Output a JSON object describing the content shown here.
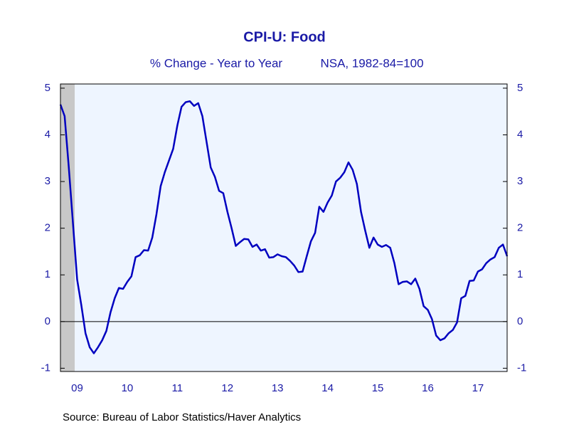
{
  "chart_data": {
    "type": "line",
    "title": "CPI-U: Food",
    "subtitle": [
      "% Change - Year to Year",
      "NSA, 1982-84=100"
    ],
    "source": "Source:  Bureau of Labor Statistics/Haver Analytics",
    "categories": [
      null,
      null,
      null,
      null,
      "09",
      null,
      null,
      null,
      null,
      null,
      null,
      null,
      null,
      null,
      null,
      null,
      "10",
      null,
      null,
      null,
      null,
      null,
      null,
      null,
      null,
      null,
      null,
      null,
      "11",
      null,
      null,
      null,
      null,
      null,
      null,
      null,
      null,
      null,
      null,
      null,
      "12",
      null,
      null,
      null,
      null,
      null,
      null,
      null,
      null,
      null,
      null,
      null,
      "13",
      null,
      null,
      null,
      null,
      null,
      null,
      null,
      null,
      null,
      null,
      null,
      "14",
      null,
      null,
      null,
      null,
      null,
      null,
      null,
      null,
      null,
      null,
      null,
      "15",
      null,
      null,
      null,
      null,
      null,
      null,
      null,
      null,
      null,
      null,
      null,
      "16",
      null,
      null,
      null,
      null,
      null,
      null,
      null,
      null,
      null,
      null,
      null,
      "17",
      null,
      null,
      null,
      null,
      null,
      null,
      null
    ],
    "series": [
      {
        "color": "#0000c0",
        "values": [
          4.65,
          4.4,
          3.3,
          2.1,
          0.9,
          0.35,
          -0.25,
          -0.55,
          -0.68,
          -0.55,
          -0.4,
          -0.2,
          0.2,
          0.5,
          0.72,
          0.7,
          0.85,
          0.97,
          1.38,
          1.42,
          1.53,
          1.52,
          1.8,
          2.3,
          2.9,
          3.2,
          3.45,
          3.7,
          4.2,
          4.6,
          4.7,
          4.72,
          4.62,
          4.68,
          4.4,
          3.85,
          3.3,
          3.1,
          2.8,
          2.75,
          2.35,
          2.0,
          1.62,
          1.7,
          1.77,
          1.76,
          1.6,
          1.65,
          1.52,
          1.55,
          1.37,
          1.38,
          1.44,
          1.4,
          1.38,
          1.3,
          1.2,
          1.06,
          1.07,
          1.4,
          1.72,
          1.9,
          2.46,
          2.35,
          2.55,
          2.7,
          3.0,
          3.08,
          3.2,
          3.41,
          3.25,
          2.95,
          2.35,
          1.95,
          1.58,
          1.8,
          1.65,
          1.6,
          1.64,
          1.58,
          1.25,
          0.8,
          0.85,
          0.86,
          0.8,
          0.92,
          0.7,
          0.33,
          0.25,
          0.05,
          -0.3,
          -0.4,
          -0.36,
          -0.25,
          -0.18,
          -0.02,
          0.5,
          0.55,
          0.87,
          0.88,
          1.07,
          1.12,
          1.25,
          1.33,
          1.38,
          1.58,
          1.65,
          1.4
        ]
      }
    ],
    "ylim": [
      -1.07,
      5.09
    ],
    "yticks": [
      -1,
      0,
      1,
      2,
      3,
      4,
      5
    ],
    "y2lim": [
      -1.07,
      5.09
    ],
    "y2ticks": [
      -1,
      0,
      1,
      2,
      3,
      4,
      5
    ]
  }
}
